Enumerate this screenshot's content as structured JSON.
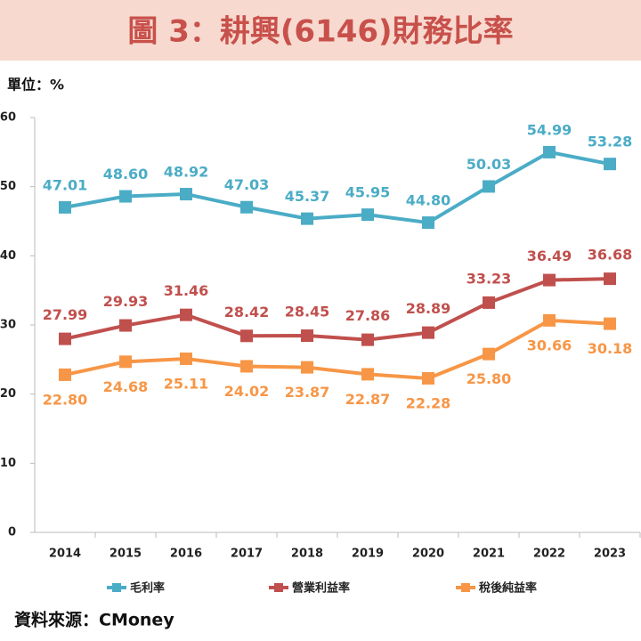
{
  "chart_data": {
    "type": "line",
    "title": "圖 3：耕興(6146)財務比率",
    "unit_label": "單位：%",
    "source": "資料來源：CMoney",
    "categories": [
      "2014",
      "2015",
      "2016",
      "2017",
      "2018",
      "2019",
      "2020",
      "2021",
      "2022",
      "2023"
    ],
    "series": [
      {
        "name": "毛利率",
        "color": "#4bacc6",
        "values": [
          47.01,
          48.6,
          48.92,
          47.03,
          45.37,
          45.95,
          44.8,
          50.03,
          54.99,
          53.28
        ],
        "value_labels": [
          "47.01",
          "48.60",
          "48.92",
          "47.03",
          "45.37",
          "45.95",
          "44.80",
          "50.03",
          "54.99",
          "53.28"
        ]
      },
      {
        "name": "營業利益率",
        "color": "#c0504d",
        "values": [
          27.99,
          29.93,
          31.46,
          28.42,
          28.45,
          27.86,
          28.89,
          33.23,
          36.49,
          36.68
        ],
        "value_labels": [
          "27.99",
          "29.93",
          "31.46",
          "28.42",
          "28.45",
          "27.86",
          "28.89",
          "33.23",
          "36.49",
          "36.68"
        ]
      },
      {
        "name": "稅後純益率",
        "color": "#f79646",
        "values": [
          22.8,
          24.68,
          25.11,
          24.02,
          23.87,
          22.87,
          22.28,
          25.8,
          30.66,
          30.18
        ],
        "value_labels": [
          "22.80",
          "24.68",
          "25.11",
          "24.02",
          "23.87",
          "22.87",
          "22.28",
          "25.80",
          "30.66",
          "30.18"
        ]
      }
    ],
    "ylim": [
      0,
      60
    ],
    "yticks": [
      0,
      10,
      20,
      30,
      40,
      50,
      60
    ],
    "grid": false
  }
}
